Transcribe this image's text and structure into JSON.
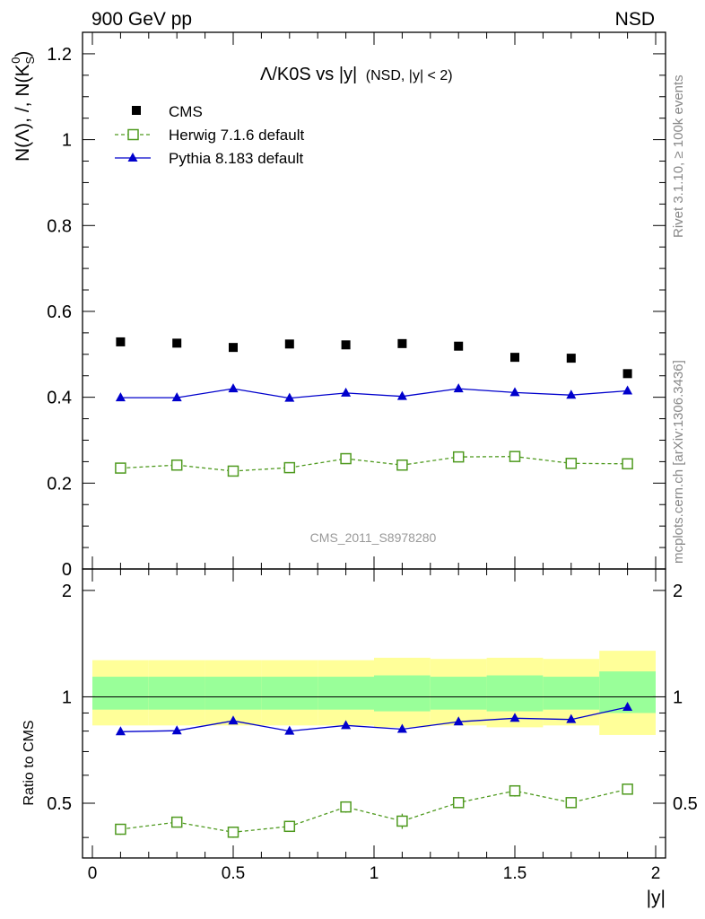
{
  "header": {
    "left_label": "900 GeV pp",
    "right_label": "NSD"
  },
  "side_labels": {
    "rivet": "Rivet 3.1.10, ≥ 100k events",
    "mcplots": "mcplots.cern.ch [arXiv:1306.3436]"
  },
  "watermark": "CMS_2011_S8978280",
  "chart_data": [
    {
      "type": "scatter",
      "panel": "main",
      "title": "Λ/K0S vs |y|",
      "subtitle": "(NSD, |y| < 2)",
      "xlabel": "",
      "ylabel": "N(Λ), /, N(K",
      "ylabel_sup": "0",
      "ylabel_sub": "S",
      "ylabel_close": ")",
      "xlim": [
        0,
        2
      ],
      "ylim": [
        0,
        1.25
      ],
      "yticks": [
        0,
        0.2,
        0.4,
        0.6,
        0.8,
        1,
        1.2
      ],
      "ytick_labels": [
        "0",
        "0.2",
        "0.4",
        "0.6",
        "0.8",
        "1",
        "1.2"
      ],
      "x": [
        0.1,
        0.3,
        0.5,
        0.7,
        0.9,
        1.1,
        1.3,
        1.5,
        1.7,
        1.9
      ],
      "series": [
        {
          "name": "CMS",
          "style": "data",
          "color": "#000000",
          "values": [
            0.529,
            0.526,
            0.516,
            0.524,
            0.522,
            0.525,
            0.519,
            0.493,
            0.491,
            0.455
          ],
          "errors": [
            0,
            0,
            0,
            0,
            0,
            0,
            0,
            0,
            0,
            0
          ]
        },
        {
          "name": "Herwig 7.1.6 default",
          "style": "dashed-open-square",
          "color": "#4f9a1f",
          "values": [
            0.235,
            0.242,
            0.228,
            0.236,
            0.257,
            0.242,
            0.261,
            0.262,
            0.246,
            0.245
          ],
          "errors": [
            0.005,
            0.005,
            0.005,
            0.005,
            0.006,
            0.005,
            0.005,
            0.006,
            0.006,
            0.006
          ]
        },
        {
          "name": "Pythia 8.183 default",
          "style": "solid-triangle",
          "color": "#0000cc",
          "values": [
            0.399,
            0.399,
            0.42,
            0.398,
            0.41,
            0.402,
            0.42,
            0.411,
            0.405,
            0.415
          ],
          "errors": [
            0.006,
            0.006,
            0.008,
            0.006,
            0.007,
            0.007,
            0.007,
            0.007,
            0.007,
            0.007
          ]
        }
      ]
    },
    {
      "type": "line",
      "panel": "ratio",
      "ylabel": "Ratio to CMS",
      "xlabel": "|y|",
      "xlim": [
        0,
        2
      ],
      "ylim": [
        0.35,
        2.3
      ],
      "yscale": "log",
      "xticks": [
        0,
        0.5,
        1,
        1.5,
        2
      ],
      "xtick_labels": [
        "0",
        "0.5",
        "1",
        "1.5",
        "2"
      ],
      "yticks": [
        0.5,
        1,
        2
      ],
      "ytick_labels": [
        "0.5",
        "1",
        "2"
      ],
      "x": [
        0.1,
        0.3,
        0.5,
        0.7,
        0.9,
        1.1,
        1.3,
        1.5,
        1.7,
        1.9
      ],
      "bins": [
        [
          0,
          0.2
        ],
        [
          0.2,
          0.4
        ],
        [
          0.4,
          0.6
        ],
        [
          0.6,
          0.8
        ],
        [
          0.8,
          1.0
        ],
        [
          1.0,
          1.2
        ],
        [
          1.2,
          1.4
        ],
        [
          1.4,
          1.6
        ],
        [
          1.6,
          1.8
        ],
        [
          1.8,
          2.0
        ]
      ],
      "bands": {
        "total_upper": [
          1.27,
          1.27,
          1.27,
          1.27,
          1.27,
          1.29,
          1.28,
          1.29,
          1.28,
          1.35
        ],
        "total_lower": [
          0.83,
          0.83,
          0.83,
          0.83,
          0.83,
          0.82,
          0.83,
          0.82,
          0.83,
          0.78
        ],
        "stat_upper": [
          1.14,
          1.14,
          1.14,
          1.14,
          1.14,
          1.15,
          1.14,
          1.15,
          1.14,
          1.18
        ],
        "stat_lower": [
          0.92,
          0.92,
          0.92,
          0.92,
          0.92,
          0.91,
          0.92,
          0.91,
          0.92,
          0.9
        ],
        "total_color": "#ffff99",
        "stat_color": "#99ff99"
      },
      "series": [
        {
          "name": "Herwig 7.1.6 default",
          "style": "dashed-open-square",
          "color": "#4f9a1f",
          "values": [
            0.422,
            0.442,
            0.414,
            0.43,
            0.488,
            0.445,
            0.502,
            0.542,
            0.502,
            0.548
          ],
          "errors": [
            0.015,
            0.015,
            0.015,
            0.015,
            0.018,
            0.022,
            0.016,
            0.02,
            0.018,
            0.018
          ]
        },
        {
          "name": "Pythia 8.183 default",
          "style": "solid-triangle",
          "color": "#0000cc",
          "values": [
            0.797,
            0.802,
            0.855,
            0.8,
            0.83,
            0.81,
            0.85,
            0.87,
            0.863,
            0.935
          ],
          "errors": [
            0.01,
            0.01,
            0.012,
            0.01,
            0.012,
            0.012,
            0.012,
            0.012,
            0.012,
            0.012
          ]
        }
      ]
    }
  ]
}
